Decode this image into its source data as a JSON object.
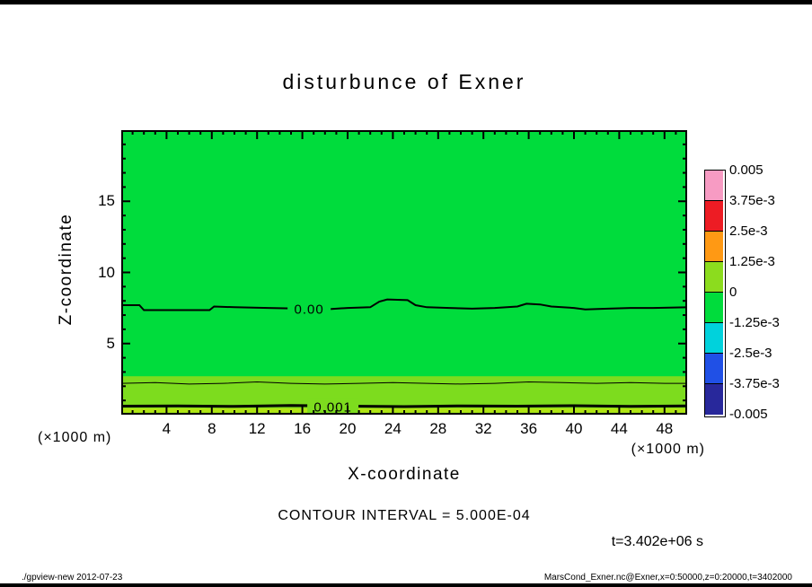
{
  "figure": {
    "title": "disturbunce of Exner",
    "contour_interval_text": "CONTOUR INTERVAL = 5.000E-04",
    "time_text": "t=3.402e+06 s",
    "footer_left": "./gpview-new  2012-07-23",
    "footer_right": "MarsCond_Exner.nc@Exner,x=0:50000,z=0:20000,t=3402000"
  },
  "axes": {
    "x": {
      "label": "X-coordinate",
      "unit": "(×1000 m)",
      "min": 0,
      "max": 50,
      "major_ticks": [
        4,
        8,
        12,
        16,
        20,
        24,
        28,
        32,
        36,
        40,
        44,
        48
      ],
      "minor_step": 1
    },
    "z": {
      "label": "Z-coordinate",
      "unit": "(×1000 m)",
      "min": 0,
      "max": 20,
      "major_ticks": [
        5,
        10,
        15
      ],
      "minor_step": 1
    }
  },
  "colorbar": {
    "labels": [
      "0.005",
      "3.75e-3",
      "2.5e-3",
      "1.25e-3",
      "0",
      "-1.25e-3",
      "-2.5e-3",
      "-3.75e-3",
      "-0.005"
    ],
    "colors": [
      "#F79BC3",
      "#ED1C24",
      "#FF9914",
      "#8CDC1E",
      "#00DC3C",
      "#00D2DC",
      "#2050E6",
      "#28289B"
    ]
  },
  "chart_data": {
    "type": "contour",
    "title": "disturbunce of Exner",
    "xlabel": "X-coordinate (×1000 m)",
    "ylabel": "Z-coordinate (×1000 m)",
    "xlim": [
      0,
      50
    ],
    "ylim": [
      0,
      20
    ],
    "contour_interval": 0.0005,
    "levels": [
      0.005,
      0.00375,
      0.0025,
      0.00125,
      0,
      -0.00125,
      -0.0025,
      -0.00375,
      -0.005
    ],
    "time": "t=3.402e+06 s",
    "fills": [
      {
        "color": "#00DC3C",
        "z_from": 0,
        "z_to": 20,
        "value_band": [
          -0.00125,
          0
        ]
      },
      {
        "color": "#7DDC1E",
        "z_from": 0,
        "z_to": 2.7,
        "value_band": [
          0,
          0.00125
        ]
      },
      {
        "color": "#B2E414",
        "z_from": 0.15,
        "z_to": 0.45,
        "value_band": [
          0.001,
          0.00125
        ]
      }
    ],
    "contour_lines": [
      {
        "level": 0.0,
        "label": "0.00",
        "label_x": 16.6,
        "label_z": 7.42,
        "label_bg": "#00DC3C",
        "width": 2,
        "x": [
          0,
          1.6,
          2.0,
          7.8,
          8.2,
          10,
          13,
          16,
          18,
          20,
          22,
          22.8,
          23.5,
          25.3,
          26,
          27,
          29,
          31,
          33,
          35,
          35.8,
          37,
          38,
          40,
          41,
          43,
          45,
          47,
          50
        ],
        "z": [
          7.7,
          7.7,
          7.35,
          7.35,
          7.6,
          7.55,
          7.5,
          7.45,
          7.4,
          7.5,
          7.55,
          7.95,
          8.1,
          8.05,
          7.7,
          7.55,
          7.5,
          7.45,
          7.5,
          7.6,
          7.8,
          7.75,
          7.6,
          7.5,
          7.4,
          7.45,
          7.5,
          7.5,
          7.55
        ]
      },
      {
        "level": 0.0005,
        "label": null,
        "width": 1,
        "x": [
          0,
          3,
          6,
          9,
          12,
          15,
          18,
          21,
          24,
          27,
          30,
          33,
          36,
          39,
          42,
          45,
          48,
          50
        ],
        "z": [
          2.2,
          2.25,
          2.15,
          2.2,
          2.3,
          2.2,
          2.15,
          2.2,
          2.25,
          2.2,
          2.15,
          2.2,
          2.3,
          2.25,
          2.2,
          2.25,
          2.2,
          2.2
        ]
      },
      {
        "level": 0.001,
        "label": "0.001",
        "label_x": 18.7,
        "label_z": 0.55,
        "label_bg": "#7DDC1E",
        "width": 3,
        "x": [
          0,
          5,
          10,
          15,
          20,
          25,
          30,
          35,
          40,
          45,
          50
        ],
        "z": [
          0.6,
          0.62,
          0.58,
          0.65,
          0.6,
          0.57,
          0.62,
          0.6,
          0.63,
          0.58,
          0.62
        ]
      }
    ]
  }
}
